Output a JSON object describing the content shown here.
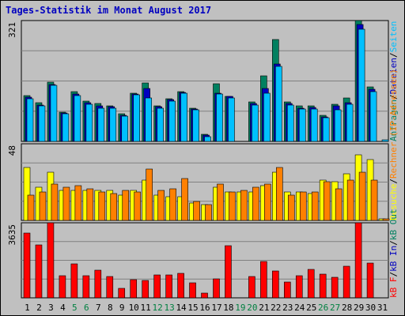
{
  "page": {
    "title": "Tages-Statistik im Monat August 2017"
  },
  "colors": {
    "background": "#c0c0c0",
    "panel": "#c0c0c0",
    "grid": "#808080",
    "hits": "#008060",
    "files": "#0000c0",
    "pages": "#00c0ff",
    "visits": "#ffff00",
    "sites": "#ff8000",
    "kbytes": "#ff0000",
    "weekend": "#008040",
    "weekday": "#000000"
  },
  "legend": {
    "top": [
      {
        "label": "Anfragen",
        "color": "#008060"
      },
      {
        "label": "Dateien",
        "color": "#0000c0"
      },
      {
        "label": "Seiten",
        "color": "#00c0ff"
      }
    ],
    "middle": [
      {
        "label": "Besuche",
        "color": "#ffff00"
      },
      {
        "label": "Rechner (IP-Adressen)",
        "color": "#ff8000"
      }
    ],
    "bottom": [
      {
        "label": "kB F",
        "color": "#ff0000"
      },
      {
        "label": "kB In",
        "color": "#0000c0"
      },
      {
        "label": "kB Out",
        "color": "#008060"
      }
    ]
  },
  "chart_data": {
    "type": "bar",
    "categories": [
      "1",
      "2",
      "3",
      "4",
      "5",
      "6",
      "7",
      "8",
      "9",
      "10",
      "11",
      "12",
      "13",
      "14",
      "15",
      "16",
      "17",
      "18",
      "19",
      "20",
      "21",
      "22",
      "23",
      "24",
      "25",
      "26",
      "27",
      "28",
      "29",
      "30",
      "31"
    ],
    "weekend_days": [
      5,
      6,
      12,
      13,
      19,
      20,
      26,
      27
    ],
    "panels": [
      {
        "name": "requests",
        "ymax": 321,
        "ymax_label": "321",
        "series": [
          {
            "name": "Anfragen",
            "values": [
              121,
              102,
              157,
              78,
              132,
              106,
              100,
              94,
              73,
              128,
              155,
              95,
              114,
              133,
              88,
              19,
              154,
              120,
              0,
              104,
              175,
              270,
              104,
              95,
              95,
              69,
              99,
              116,
              321,
              145,
              0
            ]
          },
          {
            "name": "Dateien",
            "values": [
              118,
              97,
              152,
              75,
              125,
              103,
              95,
              92,
              70,
              126,
              140,
              92,
              111,
              131,
              86,
              16,
              128,
              119,
              0,
              100,
              140,
              205,
              101,
              89,
              90,
              65,
              94,
              102,
              310,
              139,
              0
            ]
          },
          {
            "name": "Seiten",
            "values": [
              114,
              95,
              149,
              73,
              121,
              99,
              89,
              88,
              67,
              123,
              115,
              89,
              108,
              128,
              83,
              12,
              125,
              116,
              0,
              97,
              127,
              200,
              97,
              87,
              87,
              63,
              84,
              98,
              297,
              133,
              3
            ]
          }
        ]
      },
      {
        "name": "visits",
        "ymax": 48,
        "ymax_label": "48",
        "series": [
          {
            "name": "Besuche",
            "values": [
              33,
              21,
              30,
              19,
              19,
              19,
              19,
              19,
              16,
              19,
              25,
              16,
              15,
              15,
              11,
              10,
              21,
              18,
              18,
              18,
              22,
              30,
              18,
              18,
              17,
              25,
              24,
              29,
              41,
              38,
              1
            ]
          },
          {
            "name": "Rechner (IP-Adressen)",
            "values": [
              16,
              18,
              23,
              21,
              22,
              20,
              18,
              17,
              19,
              18,
              32,
              19,
              20,
              26,
              12,
              10,
              23,
              18,
              19,
              21,
              23,
              33,
              16,
              18,
              18,
              24,
              20,
              25,
              30,
              25,
              1
            ]
          }
        ]
      },
      {
        "name": "kbytes",
        "ymax": 3635,
        "ymax_label": "3635",
        "series": [
          {
            "name": "kB F",
            "values": [
              3130,
              2551,
              3635,
              1056,
              1653,
              1084,
              1338,
              1020,
              457,
              875,
              837,
              1116,
              1104,
              1196,
              742,
              234,
              928,
              2514,
              0,
              1014,
              1766,
              1283,
              748,
              1064,
              1389,
              1160,
              1013,
              1525,
              3635,
              1672,
              0
            ]
          }
        ]
      }
    ]
  }
}
